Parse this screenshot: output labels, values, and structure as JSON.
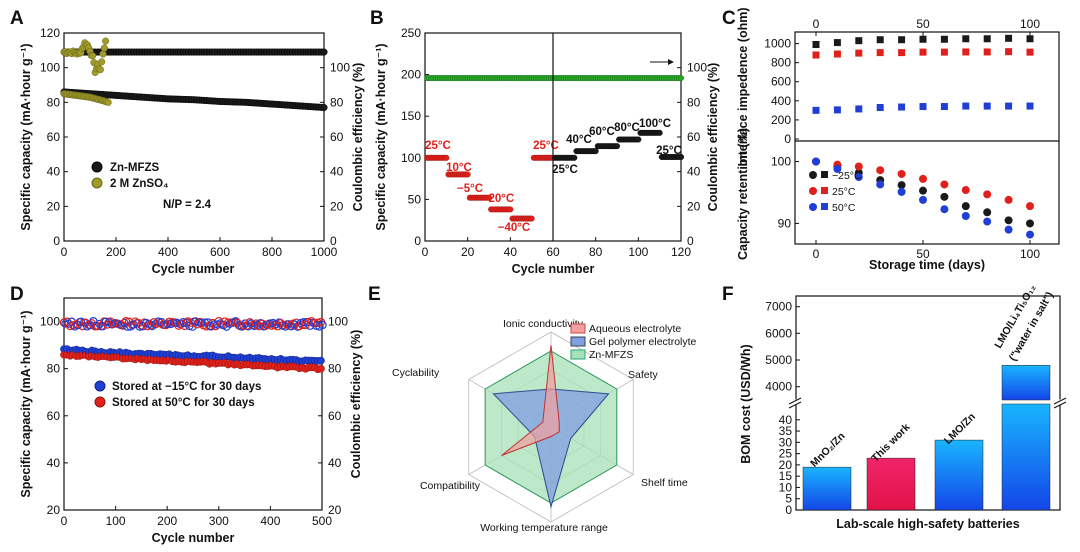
{
  "colors": {
    "black_marker": "#1a1a1a",
    "olive_marker": "#a09b2a",
    "green_marker": "#2aa52a",
    "red_marker": "#e0201a",
    "blue_marker": "#1f3fd6",
    "aqueous_fill": "#f2a0a0",
    "gel_fill": "#7f9fe0",
    "mfzs_fill": "#a8e0b8",
    "bar_blue": "#1aa0e8",
    "bar_pink": "#e8185a"
  },
  "chart_data": [
    {
      "panel": "A",
      "type": "scatter",
      "xlabel": "Cycle number",
      "ylabel": "Specific capacity (mA·hour g⁻¹)",
      "y2label": "Coulombic efficiency (%)",
      "xlim": [
        0,
        1000
      ],
      "ylim": [
        0,
        120
      ],
      "y2lim": [
        0,
        120
      ],
      "xticks": [
        0,
        200,
        400,
        600,
        800,
        1000
      ],
      "yticks": [
        0,
        20,
        40,
        60,
        80,
        100,
        120
      ],
      "y2ticks": [
        0,
        20,
        40,
        60,
        80,
        100
      ],
      "annotation": "N/P = 2.4",
      "legend": [
        "Zn-MFZS",
        "2 M ZnSO₄"
      ],
      "series": [
        {
          "name": "Zn-MFZS capacity",
          "x": [
            0,
            100,
            200,
            300,
            400,
            500,
            600,
            700,
            800,
            900,
            1000
          ],
          "y": [
            86,
            85,
            84,
            83,
            82,
            81.5,
            80.5,
            80,
            79,
            78,
            77
          ]
        },
        {
          "name": "Zn-MFZS CE",
          "x": [
            0,
            1000
          ],
          "y": [
            109,
            109
          ]
        },
        {
          "name": "2 M ZnSO4 capacity",
          "x": [
            0,
            50,
            100,
            150,
            170
          ],
          "y": [
            85,
            84,
            83,
            81,
            80
          ]
        },
        {
          "name": "2 M ZnSO4 CE",
          "x": [
            0,
            30,
            60,
            80,
            90,
            100,
            110,
            120,
            130,
            140,
            160
          ],
          "y": [
            109,
            109,
            108,
            114,
            113,
            110,
            106,
            98,
            101,
            99,
            116
          ]
        }
      ]
    },
    {
      "panel": "B",
      "type": "scatter",
      "xlabel": "Cycle number",
      "ylabel": "Specific capacity (mA·hour g⁻¹)",
      "y2label": "Coulombic efficiency (%)",
      "xlim": [
        0,
        120
      ],
      "ylim": [
        0,
        250
      ],
      "y2lim": [
        0,
        120
      ],
      "xticks": [
        0,
        20,
        40,
        60,
        80,
        100,
        120
      ],
      "yticks": [
        0,
        50,
        100,
        150,
        200,
        250
      ],
      "y2ticks": [
        0,
        20,
        40,
        60,
        80,
        100
      ],
      "steps": [
        {
          "label": "25°C",
          "from": 0,
          "to": 10,
          "cap": 100
        },
        {
          "label": "10°C",
          "from": 10,
          "to": 20,
          "cap": 80
        },
        {
          "label": "−5°C",
          "from": 20,
          "to": 30,
          "cap": 52
        },
        {
          "label": "−20°C",
          "from": 30,
          "to": 40,
          "cap": 38
        },
        {
          "label": "−40°C",
          "from": 40,
          "to": 50,
          "cap": 27
        },
        {
          "label": "25°C",
          "from": 50,
          "to": 60,
          "cap": 100
        },
        {
          "label": "25°C",
          "from": 60,
          "to": 70,
          "cap": 100
        },
        {
          "label": "40°C",
          "from": 70,
          "to": 80,
          "cap": 108
        },
        {
          "label": "60°C",
          "from": 80,
          "to": 90,
          "cap": 114
        },
        {
          "label": "80°C",
          "from": 90,
          "to": 100,
          "cap": 122
        },
        {
          "label": "100°C",
          "from": 100,
          "to": 110,
          "cap": 130
        },
        {
          "label": "25°C",
          "from": 110,
          "to": 120,
          "cap": 101
        }
      ],
      "ce": 94
    },
    {
      "panel": "C",
      "type": "scatter",
      "xlabel": "Storage time (days)",
      "top_ylabel": "Interface impedence (ohm)",
      "bottom_ylabel": "Capacity retention (%)",
      "xlim": [
        0,
        100
      ],
      "top_ylim": [
        0,
        1100
      ],
      "top_yticks": [
        0,
        200,
        400,
        600,
        800,
        1000
      ],
      "bottom_ylim": [
        87,
        103
      ],
      "bottom_yticks": [
        90,
        100
      ],
      "xticks": [
        0,
        50,
        100
      ],
      "legend": [
        "−25°C",
        "25°C",
        "50°C"
      ],
      "impedance": {
        "days": [
          0,
          10,
          20,
          30,
          40,
          50,
          60,
          70,
          80,
          90,
          100
        ],
        "m25": [
          990,
          1010,
          1030,
          1040,
          1040,
          1045,
          1045,
          1050,
          1050,
          1055,
          1050
        ],
        "p25": [
          880,
          890,
          900,
          905,
          905,
          910,
          910,
          912,
          912,
          915,
          910
        ],
        "p50": [
          300,
          305,
          315,
          330,
          335,
          340,
          340,
          345,
          345,
          345,
          345
        ]
      },
      "retention": {
        "days": [
          0,
          10,
          20,
          30,
          40,
          50,
          60,
          70,
          80,
          90,
          100
        ],
        "m25": [
          100,
          99.3,
          98.2,
          97,
          96.2,
          95.3,
          94.3,
          92.8,
          91.8,
          90.5,
          90
        ],
        "p25": [
          100,
          99.5,
          99.2,
          98.6,
          98.0,
          97.2,
          96.3,
          95.4,
          94.7,
          93.8,
          92.8
        ],
        "p50": [
          100,
          98.8,
          97.5,
          96.3,
          95.1,
          93.8,
          92.3,
          91.2,
          90.3,
          89.0,
          88.2
        ]
      }
    },
    {
      "panel": "D",
      "type": "scatter",
      "xlabel": "Cycle number",
      "ylabel": "Specific capacity (mA·hour g⁻¹)",
      "y2label": "Coulombic efficiency (%)",
      "xlim": [
        0,
        500
      ],
      "ylim": [
        20,
        110
      ],
      "y2lim": [
        20,
        110
      ],
      "xticks": [
        0,
        100,
        200,
        300,
        400,
        500
      ],
      "yticks": [
        20,
        40,
        60,
        80,
        100
      ],
      "y2ticks": [
        20,
        40,
        60,
        80,
        100
      ],
      "legend": [
        "Stored at −15°C for 30 days",
        "Stored at 50°C for 30 days"
      ],
      "blue_capacity": [
        88,
        87,
        86,
        85.5,
        85,
        84,
        83
      ],
      "red_capacity": [
        86,
        85,
        84,
        83,
        82,
        81,
        80
      ],
      "x": [
        0,
        80,
        160,
        240,
        320,
        400,
        500
      ],
      "ce": 99
    },
    {
      "panel": "E",
      "type": "radar",
      "axes": [
        "Ionic conductivity",
        "Safety",
        "Shelf time",
        "Working temperature range",
        "Compatibility",
        "Cyclability"
      ],
      "legend": [
        "Aqueous electrolyte",
        "Gel polymer electrolyte",
        "Zn-MFZS"
      ],
      "series": [
        {
          "name": "Aqueous electrolyte",
          "values": [
            4.3,
            0.5,
            0.5,
            0.5,
            3.0,
            0.5
          ]
        },
        {
          "name": "Gel polymer electrolyte",
          "values": [
            2.0,
            3.5,
            1.2,
            4.2,
            1.0,
            3.5
          ]
        },
        {
          "name": "Zn-MFZS",
          "values": [
            4.0,
            4.0,
            4.0,
            4.0,
            4.0,
            4.0
          ]
        }
      ],
      "max": 5
    },
    {
      "panel": "F",
      "type": "bar",
      "xlabel": "Lab-scale high-safety batteries",
      "ylabel": "BOM cost (USD/Wh)",
      "categories": [
        "MnO₂/Zn",
        "This work",
        "LMO/Zn",
        "LMO/Li₄Ti₅O₁₂ (\"water in salt\")"
      ],
      "values": [
        19,
        23,
        31,
        4800
      ],
      "upper_yticks": [
        4000,
        5000,
        6000,
        7000
      ],
      "lower_yticks": [
        0,
        5,
        10,
        15,
        20,
        25,
        30,
        35,
        40
      ]
    }
  ],
  "panel_letters": [
    "A",
    "B",
    "C",
    "D",
    "E",
    "F"
  ],
  "text": {
    "a_leg1": "Zn-MFZS",
    "a_leg2": "2 M ZnSO₄",
    "a_note": "N/P = 2.4",
    "c_leg1": "−25°C",
    "c_leg2": "25°C",
    "c_leg3": "50°C",
    "d_leg1": "Stored at −15°C for 30 days",
    "d_leg2": "Stored at 50°C for 30 days",
    "e_leg1": "Aqueous electrolyte",
    "e_leg2": "Gel polymer electrolyte",
    "e_leg3": "Zn-MFZS",
    "f_cat_label_1": "MnO₂/Zn",
    "f_cat_label_2": "This work",
    "f_cat_label_3": "LMO/Zn",
    "f_cat_label_4a": "LMO/Li₄Ti₅O₁₂",
    "f_cat_label_4b": "(\"water in salt\")"
  }
}
